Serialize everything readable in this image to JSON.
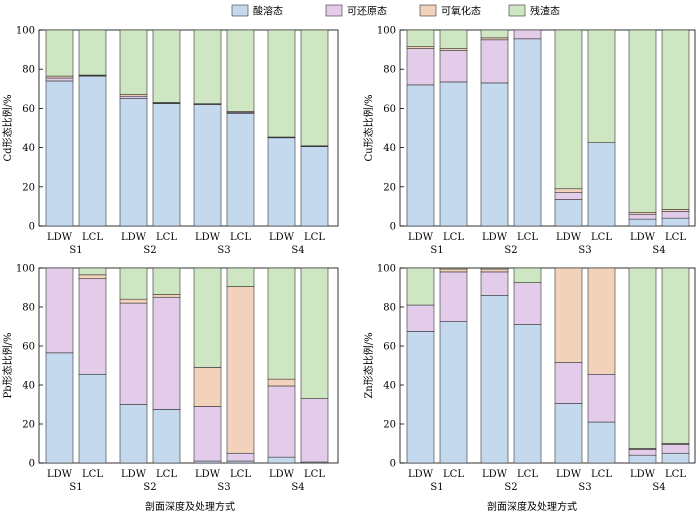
{
  "legend": [
    {
      "name": "酸溶态",
      "color": "#c5d9ee"
    },
    {
      "name": "可还原态",
      "color": "#e3cce9"
    },
    {
      "name": "可氧化态",
      "color": "#f3d2bb"
    },
    {
      "name": "残渣态",
      "color": "#cfe6c2"
    }
  ],
  "group_labels": [
    "S1",
    "S2",
    "S3",
    "S4"
  ],
  "bar_labels": [
    "LDW",
    "LCL"
  ],
  "x_title": "剖面深度及处理方式",
  "chart_data": [
    {
      "type": "bar",
      "stacked": true,
      "ylabel": "Cd形态比例/%",
      "ylim": [
        0,
        100
      ],
      "yticks": [
        0,
        20,
        40,
        60,
        80,
        100
      ],
      "categories": [
        "S1 LDW",
        "S1 LCL",
        "S2 LDW",
        "S2 LCL",
        "S3 LDW",
        "S3 LCL",
        "S4 LDW",
        "S4 LCL"
      ],
      "series": [
        {
          "name": "酸溶态",
          "values": [
            74,
            76.5,
            65,
            62.5,
            62,
            57.5,
            45,
            40.5
          ]
        },
        {
          "name": "可还原态",
          "values": [
            1.5,
            0.3,
            1.2,
            0.3,
            0.2,
            0.5,
            0.2,
            0.2
          ]
        },
        {
          "name": "可氧化态",
          "values": [
            1,
            0.2,
            1,
            0.2,
            0.2,
            0.5,
            0.2,
            0.2
          ]
        },
        {
          "name": "残渣态",
          "values": [
            23.5,
            23,
            32.8,
            37,
            37.6,
            41.5,
            54.6,
            59.1
          ]
        }
      ]
    },
    {
      "type": "bar",
      "stacked": true,
      "ylabel": "Cu形态比例/%",
      "ylim": [
        0,
        100
      ],
      "yticks": [
        0,
        20,
        40,
        60,
        80,
        100
      ],
      "categories": [
        "S1 LDW",
        "S1 LCL",
        "S2 LDW",
        "S2 LCL",
        "S3 LDW",
        "S3 LCL",
        "S4 LDW",
        "S4 LCL"
      ],
      "series": [
        {
          "name": "酸溶态",
          "values": [
            72,
            73.5,
            73,
            95.5,
            13.5,
            42.5,
            3.5,
            4
          ]
        },
        {
          "name": "可还原态",
          "values": [
            18.5,
            16,
            22,
            4.5,
            3.5,
            0,
            2.5,
            3.5
          ]
        },
        {
          "name": "可氧化态",
          "values": [
            1,
            1,
            1,
            0,
            2,
            0,
            1,
            1
          ]
        },
        {
          "name": "残渣态",
          "values": [
            8.5,
            9.5,
            4,
            0,
            81,
            57.5,
            93,
            91.5
          ]
        }
      ]
    },
    {
      "type": "bar",
      "stacked": true,
      "ylabel": "Pb形态比例/%",
      "ylim": [
        0,
        100
      ],
      "yticks": [
        0,
        20,
        40,
        60,
        80,
        100
      ],
      "categories": [
        "S1 LDW",
        "S1 LCL",
        "S2 LDW",
        "S2 LCL",
        "S3 LDW",
        "S3 LCL",
        "S4 LDW",
        "S4 LCL"
      ],
      "series": [
        {
          "name": "酸溶态",
          "values": [
            56.5,
            45.5,
            30,
            27.5,
            1,
            1,
            3,
            0.5
          ]
        },
        {
          "name": "可还原态",
          "values": [
            43.5,
            49,
            52,
            57.5,
            28,
            4,
            36.5,
            32.5
          ]
        },
        {
          "name": "可氧化态",
          "values": [
            0,
            2,
            2,
            1.5,
            20,
            85.5,
            3.5,
            0
          ]
        },
        {
          "name": "残渣态",
          "values": [
            0,
            3.5,
            16,
            13.5,
            51,
            9.5,
            57,
            67
          ]
        }
      ]
    },
    {
      "type": "bar",
      "stacked": true,
      "ylabel": "Zn形态比例/%",
      "ylim": [
        0,
        100
      ],
      "yticks": [
        0,
        20,
        40,
        60,
        80,
        100
      ],
      "categories": [
        "S1 LDW",
        "S1 LCL",
        "S2 LDW",
        "S2 LCL",
        "S3 LDW",
        "S3 LCL",
        "S4 LDW",
        "S4 LCL"
      ],
      "series": [
        {
          "name": "酸溶态",
          "values": [
            67.5,
            72.5,
            86,
            71,
            30.5,
            21,
            4,
            5
          ]
        },
        {
          "name": "可还原态",
          "values": [
            13.5,
            25.5,
            12,
            21.5,
            21,
            24.5,
            3,
            4.5
          ]
        },
        {
          "name": "可氧化态",
          "values": [
            0,
            1.5,
            1.5,
            0,
            48.5,
            54.5,
            0.5,
            0.5
          ]
        },
        {
          "name": "残渣态",
          "values": [
            19,
            0.5,
            0.5,
            7.5,
            0,
            0,
            92.5,
            90
          ]
        }
      ]
    }
  ]
}
